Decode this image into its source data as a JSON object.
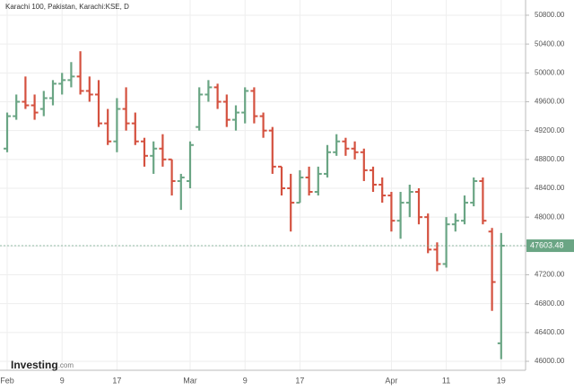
{
  "chart_data": {
    "type": "ohlc",
    "title": "Karachi 100, Pakistan, Karachi:KSE, D",
    "logo": "Investing",
    "logo_suffix": ".com",
    "categories": [
      "Feb",
      null,
      null,
      null,
      null,
      null,
      "9",
      null,
      null,
      null,
      null,
      null,
      "17",
      null,
      null,
      null,
      null,
      null,
      null,
      null,
      "Mar",
      null,
      null,
      null,
      null,
      null,
      "9",
      null,
      null,
      null,
      null,
      null,
      "17",
      null,
      null,
      null,
      null,
      null,
      null,
      null,
      null,
      null,
      "Apr",
      null,
      null,
      null,
      null,
      null,
      "11",
      null,
      null,
      null,
      null,
      null,
      "19"
    ],
    "ohlc": [
      [
        48950,
        49450,
        48900,
        49400
      ],
      [
        49400,
        49700,
        49350,
        49600
      ],
      [
        49600,
        49950,
        49500,
        49550
      ],
      [
        49550,
        49700,
        49350,
        49450
      ],
      [
        49500,
        49750,
        49400,
        49650
      ],
      [
        49650,
        49900,
        49550,
        49850
      ],
      [
        49850,
        50000,
        49700,
        49900
      ],
      [
        49900,
        50150,
        49800,
        49950
      ],
      [
        49950,
        50300,
        49700,
        49750
      ],
      [
        49750,
        49950,
        49600,
        49700
      ],
      [
        49700,
        49900,
        49250,
        49300
      ],
      [
        49300,
        49500,
        49000,
        49050
      ],
      [
        49050,
        49650,
        48900,
        49500
      ],
      [
        49500,
        49800,
        49200,
        49300
      ],
      [
        49300,
        49450,
        49000,
        49050
      ],
      [
        49050,
        49100,
        48700,
        48850
      ],
      [
        48850,
        49050,
        48600,
        48950
      ],
      [
        48950,
        49150,
        48700,
        48800
      ],
      [
        48800,
        48800,
        48300,
        48500
      ],
      [
        48500,
        48600,
        48100,
        48550
      ],
      [
        48500,
        49050,
        48400,
        49000
      ],
      [
        49250,
        49800,
        49200,
        49700
      ],
      [
        49700,
        49900,
        49600,
        49800
      ],
      [
        49800,
        49850,
        49500,
        49600
      ],
      [
        49600,
        49700,
        49250,
        49350
      ],
      [
        49350,
        49550,
        49200,
        49450
      ],
      [
        49450,
        49800,
        49300,
        49750
      ],
      [
        49750,
        49800,
        49300,
        49400
      ],
      [
        49400,
        49450,
        49100,
        49200
      ],
      [
        49200,
        49250,
        48600,
        48700
      ],
      [
        48700,
        48700,
        48300,
        48400
      ],
      [
        48400,
        48600,
        47800,
        48200
      ],
      [
        48200,
        48650,
        48200,
        48550
      ],
      [
        48550,
        48700,
        48300,
        48350
      ],
      [
        48350,
        48700,
        48300,
        48600
      ],
      [
        48600,
        49000,
        48550,
        48900
      ],
      [
        48900,
        49150,
        48850,
        49050
      ],
      [
        49050,
        49100,
        48850,
        48950
      ],
      [
        48950,
        49050,
        48800,
        48900
      ],
      [
        48900,
        48950,
        48500,
        48650
      ],
      [
        48650,
        48700,
        48350,
        48450
      ],
      [
        48450,
        48550,
        48200,
        48300
      ],
      [
        48300,
        48350,
        47800,
        47950
      ],
      [
        47950,
        48350,
        47700,
        48200
      ],
      [
        48200,
        48450,
        48000,
        48350
      ],
      [
        48350,
        48400,
        47900,
        48000
      ],
      [
        48000,
        48050,
        47500,
        47550
      ],
      [
        47550,
        47650,
        47250,
        47350
      ],
      [
        47350,
        48000,
        47300,
        47900
      ],
      [
        47900,
        48050,
        47800,
        47950
      ],
      [
        47950,
        48300,
        47900,
        48200
      ],
      [
        48200,
        48550,
        48150,
        48500
      ],
      [
        48500,
        48550,
        47900,
        47950
      ],
      [
        47800,
        47850,
        46700,
        47100
      ],
      [
        46250,
        47780,
        46030,
        47603.48
      ]
    ],
    "up_color": "#6aa584",
    "down_color": "#d4513f",
    "ylim": [
      45876,
      51011
    ],
    "yticks": [
      {
        "value": 46000,
        "label": "46000.00"
      },
      {
        "value": 46400,
        "label": "46400.00"
      },
      {
        "value": 46800,
        "label": "46800.00"
      },
      {
        "value": 47200,
        "label": "47200.00"
      },
      {
        "value": 47600,
        "label": "47600.00"
      },
      {
        "value": 48000,
        "label": "48000.00"
      },
      {
        "value": 48400,
        "label": "48400.00"
      },
      {
        "value": 48800,
        "label": "48800.00"
      },
      {
        "value": 49200,
        "label": "49200.00"
      },
      {
        "value": 49600,
        "label": "49600.00"
      },
      {
        "value": 50000,
        "label": "50000.00"
      },
      {
        "value": 50400,
        "label": "50400.00"
      },
      {
        "value": 50800,
        "label": "50800.00"
      }
    ],
    "grid": true
  }
}
